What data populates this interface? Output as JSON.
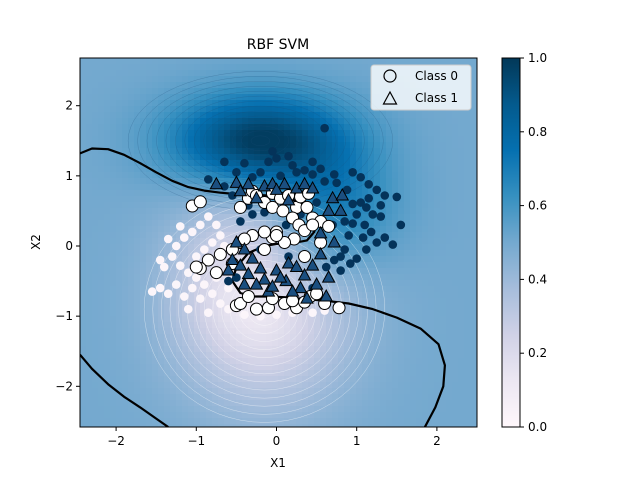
{
  "chart_data": {
    "type": "scatter",
    "title": "RBF SVM",
    "xlabel": "X1",
    "ylabel": "X2",
    "xlim": [
      -2.45,
      2.5
    ],
    "ylim": [
      -2.58,
      2.68
    ],
    "xticks": [
      -2,
      -1,
      0,
      1,
      2
    ],
    "yticks": [
      -2,
      -1,
      0,
      1,
      2
    ],
    "legend": {
      "placement": "top-right",
      "entries": [
        {
          "label": "Class 0",
          "marker": "circle"
        },
        {
          "label": "Class 1",
          "marker": "triangle"
        }
      ]
    },
    "colorbar": {
      "colormap": "PuBu",
      "range": [
        0.0,
        1.0
      ],
      "ticks": [
        "0.0",
        "0.2",
        "0.4",
        "0.6",
        "0.8",
        "1.0"
      ],
      "stops": [
        "#fff7fb",
        "#ece7f2",
        "#d0d1e6",
        "#a6bddb",
        "#74a9cf",
        "#3690c0",
        "#0570b0",
        "#045a8d",
        "#023858"
      ]
    },
    "background_field": {
      "description_levels": "probability of class 1",
      "bumps": [
        {
          "x": -0.15,
          "y": -0.9,
          "sx": 0.75,
          "sy": 0.95,
          "amp": -0.34
        },
        {
          "x": -0.5,
          "y": -0.3,
          "sx": 0.55,
          "sy": 0.7,
          "amp": -0.12
        },
        {
          "x": -0.2,
          "y": 1.5,
          "sx": 0.75,
          "sy": 0.45,
          "amp": 0.5
        },
        {
          "x": 0.7,
          "y": 0.55,
          "sx": 0.55,
          "sy": 0.6,
          "amp": 0.22
        },
        {
          "x": 0.15,
          "y": -0.35,
          "sx": 0.55,
          "sy": 0.45,
          "amp": 0.08
        }
      ],
      "base": 0.5
    },
    "decision_boundary": [
      [
        [
          -2.45,
          1.32
        ],
        [
          -2.3,
          1.39
        ],
        [
          -2.1,
          1.38
        ],
        [
          -1.9,
          1.3
        ],
        [
          -1.7,
          1.18
        ],
        [
          -1.5,
          1.05
        ],
        [
          -1.3,
          0.93
        ],
        [
          -1.1,
          0.84
        ],
        [
          -0.9,
          0.79
        ],
        [
          -0.7,
          0.76
        ],
        [
          -0.5,
          0.74
        ],
        [
          -0.3,
          0.73
        ],
        [
          -0.1,
          0.72
        ],
        [
          0.1,
          0.7
        ],
        [
          0.3,
          0.62
        ],
        [
          0.42,
          0.5
        ],
        [
          0.5,
          0.35
        ],
        [
          0.47,
          0.2
        ],
        [
          0.38,
          0.08
        ],
        [
          0.2,
          0.04
        ],
        [
          0.0,
          0.03
        ],
        [
          -0.15,
          0.0
        ],
        [
          -0.35,
          -0.1
        ],
        [
          -0.5,
          -0.3
        ],
        [
          -0.55,
          -0.5
        ],
        [
          -0.45,
          -0.67
        ],
        [
          -0.3,
          -0.72
        ],
        [
          -0.1,
          -0.72
        ],
        [
          0.1,
          -0.73
        ],
        [
          0.3,
          -0.75
        ],
        [
          0.6,
          -0.78
        ],
        [
          0.9,
          -0.82
        ],
        [
          1.2,
          -0.9
        ],
        [
          1.5,
          -1.02
        ],
        [
          1.8,
          -1.18
        ],
        [
          2.02,
          -1.4
        ],
        [
          2.1,
          -1.7
        ],
        [
          2.08,
          -2.0
        ],
        [
          1.98,
          -2.3
        ],
        [
          1.85,
          -2.58
        ]
      ],
      [
        [
          -2.45,
          -1.55
        ],
        [
          -2.3,
          -1.75
        ],
        [
          -2.1,
          -1.97
        ],
        [
          -1.9,
          -2.15
        ],
        [
          -1.7,
          -2.3
        ],
        [
          -1.5,
          -2.46
        ],
        [
          -1.35,
          -2.58
        ]
      ]
    ],
    "series": [
      {
        "name": "Class 0",
        "marker": "circle",
        "points": [
          [
            -1.05,
            0.57
          ],
          [
            -0.95,
            0.63
          ],
          [
            -0.45,
            0.55
          ],
          [
            -0.35,
            0.68
          ],
          [
            -0.3,
            0.78
          ],
          [
            -0.25,
            0.72
          ],
          [
            -0.05,
            0.75
          ],
          [
            0.05,
            0.68
          ],
          [
            0.15,
            0.72
          ],
          [
            0.25,
            0.55
          ],
          [
            0.3,
            0.7
          ],
          [
            0.4,
            0.75
          ],
          [
            0.38,
            0.55
          ],
          [
            0.45,
            0.4
          ],
          [
            0.55,
            0.35
          ],
          [
            0.65,
            0.28
          ],
          [
            -0.15,
            0.62
          ],
          [
            -0.05,
            0.55
          ],
          [
            0.08,
            0.5
          ],
          [
            0.2,
            0.4
          ],
          [
            0.28,
            0.3
          ],
          [
            0.35,
            0.22
          ],
          [
            0.22,
            0.1
          ],
          [
            0.1,
            0.05
          ],
          [
            -0.05,
            0.12
          ],
          [
            -0.15,
            0.2
          ],
          [
            -0.3,
            0.15
          ],
          [
            -0.45,
            0.05
          ],
          [
            -0.55,
            -0.05
          ],
          [
            -0.7,
            -0.12
          ],
          [
            -0.85,
            -0.2
          ],
          [
            -0.95,
            -0.32
          ],
          [
            -0.75,
            -0.38
          ],
          [
            -0.55,
            -0.25
          ],
          [
            -0.4,
            0.1
          ],
          [
            0.0,
            0.2
          ],
          [
            0.0,
            0.15
          ],
          [
            0.45,
            0.3
          ],
          [
            0.55,
            0.05
          ],
          [
            0.35,
            -0.15
          ],
          [
            -0.5,
            -0.85
          ],
          [
            -0.45,
            -0.82
          ],
          [
            -0.25,
            -0.9
          ],
          [
            -0.1,
            -0.88
          ],
          [
            0.1,
            -0.82
          ],
          [
            0.25,
            -0.88
          ],
          [
            0.35,
            -0.8
          ],
          [
            0.42,
            -0.72
          ],
          [
            0.5,
            -0.68
          ],
          [
            0.2,
            -0.78
          ],
          [
            -0.05,
            -0.75
          ],
          [
            -0.35,
            -0.72
          ],
          [
            0.78,
            -0.88
          ],
          [
            0.6,
            -0.82
          ],
          [
            -0.15,
            -0.05
          ],
          [
            -1.0,
            -0.3
          ]
        ]
      },
      {
        "name": "Class 1",
        "marker": "triangle",
        "points": [
          [
            -0.75,
            0.88
          ],
          [
            -0.5,
            0.9
          ],
          [
            -0.35,
            0.88
          ],
          [
            -0.15,
            0.85
          ],
          [
            -0.05,
            0.88
          ],
          [
            0.1,
            0.88
          ],
          [
            0.25,
            0.82
          ],
          [
            0.35,
            0.88
          ],
          [
            0.45,
            0.82
          ],
          [
            -0.25,
            0.68
          ],
          [
            0.0,
            0.8
          ],
          [
            0.15,
            0.65
          ],
          [
            0.7,
            0.68
          ],
          [
            0.82,
            0.72
          ],
          [
            0.8,
            0.5
          ],
          [
            0.65,
            0.5
          ],
          [
            0.72,
            0.05
          ],
          [
            0.55,
            -0.12
          ],
          [
            -0.5,
            0.05
          ],
          [
            -0.4,
            -0.05
          ],
          [
            -0.55,
            -0.2
          ],
          [
            -0.45,
            -0.28
          ],
          [
            -0.3,
            -0.18
          ],
          [
            -0.2,
            -0.32
          ],
          [
            -0.35,
            -0.4
          ],
          [
            -0.15,
            -0.48
          ],
          [
            0.0,
            -0.35
          ],
          [
            0.15,
            -0.25
          ],
          [
            0.25,
            -0.3
          ],
          [
            0.35,
            -0.42
          ],
          [
            0.5,
            -0.55
          ],
          [
            -0.6,
            -0.35
          ],
          [
            -0.25,
            -0.55
          ],
          [
            -0.1,
            -0.65
          ],
          [
            0.12,
            -0.5
          ],
          [
            0.3,
            -0.6
          ],
          [
            0.45,
            -0.28
          ],
          [
            -0.4,
            -0.55
          ],
          [
            0.2,
            -0.65
          ],
          [
            0.38,
            -0.75
          ],
          [
            0.62,
            -0.72
          ],
          [
            -0.05,
            -0.58
          ],
          [
            0.65,
            -0.45
          ],
          [
            0.05,
            -0.45
          ],
          [
            -0.45,
            0.78
          ],
          [
            0.55,
            0.18
          ]
        ]
      },
      {
        "name": "",
        "marker": "dot-blue",
        "points": [
          [
            -0.65,
            1.2
          ],
          [
            -0.4,
            1.18
          ],
          [
            -0.1,
            1.2
          ],
          [
            0.0,
            1.25
          ],
          [
            0.2,
            1.15
          ],
          [
            0.35,
            1.08
          ],
          [
            0.55,
            1.1
          ],
          [
            0.72,
            1.02
          ],
          [
            0.95,
            1.05
          ],
          [
            1.05,
            0.98
          ],
          [
            1.15,
            0.88
          ],
          [
            1.25,
            0.8
          ],
          [
            1.35,
            0.72
          ],
          [
            1.5,
            0.7
          ],
          [
            1.3,
            0.58
          ],
          [
            1.2,
            0.45
          ],
          [
            1.1,
            0.3
          ],
          [
            1.18,
            0.2
          ],
          [
            1.25,
            0.05
          ],
          [
            1.12,
            -0.05
          ],
          [
            1.35,
            0.12
          ],
          [
            0.95,
            0.32
          ],
          [
            0.9,
            0.15
          ],
          [
            0.85,
            -0.05
          ],
          [
            1.0,
            -0.18
          ],
          [
            0.92,
            -0.25
          ],
          [
            0.8,
            -0.35
          ],
          [
            0.62,
            -0.3
          ],
          [
            0.72,
            -0.2
          ],
          [
            0.75,
            0.9
          ],
          [
            0.6,
            0.92
          ],
          [
            0.88,
            0.8
          ],
          [
            0.95,
            0.6
          ],
          [
            1.05,
            0.62
          ],
          [
            1.15,
            0.68
          ],
          [
            0.45,
            1.02
          ],
          [
            0.25,
            1.05
          ],
          [
            -0.2,
            1.05
          ],
          [
            -0.5,
            1.05
          ],
          [
            -0.3,
            0.98
          ],
          [
            0.05,
            1.0
          ],
          [
            -0.55,
            0.72
          ],
          [
            -0.35,
            0.58
          ],
          [
            -0.15,
            0.48
          ],
          [
            0.12,
            0.3
          ],
          [
            0.6,
            1.68
          ],
          [
            1.55,
            0.3
          ],
          [
            1.45,
            0.02
          ],
          [
            1.0,
            0.45
          ],
          [
            1.12,
            0.55
          ],
          [
            0.85,
            0.35
          ],
          [
            0.7,
            0.3
          ],
          [
            1.3,
            0.42
          ],
          [
            0.5,
            0.62
          ],
          [
            0.8,
            -0.15
          ],
          [
            1.08,
            0.12
          ],
          [
            -0.05,
            1.35
          ],
          [
            0.15,
            1.28
          ],
          [
            0.45,
            1.2
          ],
          [
            -0.3,
            0.45
          ],
          [
            -0.45,
            0.35
          ],
          [
            0.3,
            0.45
          ],
          [
            -0.6,
            -0.5
          ],
          [
            -0.5,
            -0.45
          ],
          [
            -0.2,
            -0.05
          ],
          [
            0.45,
            -0.6
          ],
          [
            0.15,
            -0.15
          ],
          [
            -0.65,
            0.85
          ],
          [
            -0.85,
            0.95
          ]
        ]
      },
      {
        "name": "",
        "marker": "dot-white",
        "points": [
          [
            -1.45,
            -0.6
          ],
          [
            -1.35,
            -0.68
          ],
          [
            -1.25,
            -0.55
          ],
          [
            -1.15,
            -0.72
          ],
          [
            -1.05,
            -0.6
          ],
          [
            -1.0,
            -0.45
          ],
          [
            -1.1,
            -0.38
          ],
          [
            -1.2,
            -0.28
          ],
          [
            -1.3,
            -0.15
          ],
          [
            -1.25,
            0.0
          ],
          [
            -1.15,
            0.12
          ],
          [
            -1.05,
            0.2
          ],
          [
            -0.95,
            0.3
          ],
          [
            -0.85,
            0.42
          ],
          [
            -0.75,
            0.3
          ],
          [
            -0.7,
            0.15
          ],
          [
            -0.8,
            0.05
          ],
          [
            -0.9,
            -0.05
          ],
          [
            -1.0,
            -0.15
          ],
          [
            -0.9,
            -0.55
          ],
          [
            -0.8,
            -0.68
          ],
          [
            -0.7,
            -0.82
          ],
          [
            -0.6,
            -0.9
          ],
          [
            -0.6,
            -0.6
          ],
          [
            -1.55,
            -0.65
          ],
          [
            -1.4,
            -0.3
          ],
          [
            -1.35,
            0.1
          ],
          [
            -0.65,
            0.0
          ],
          [
            -0.75,
            -0.45
          ],
          [
            -0.95,
            -0.75
          ],
          [
            -1.1,
            -0.9
          ],
          [
            -0.85,
            -0.95
          ],
          [
            -0.4,
            -0.98
          ],
          [
            -0.2,
            -1.0
          ],
          [
            0.0,
            -0.98
          ],
          [
            0.2,
            -0.95
          ],
          [
            0.45,
            -0.95
          ],
          [
            0.6,
            -0.92
          ],
          [
            -1.2,
            0.28
          ],
          [
            -1.45,
            -0.2
          ]
        ]
      }
    ]
  }
}
